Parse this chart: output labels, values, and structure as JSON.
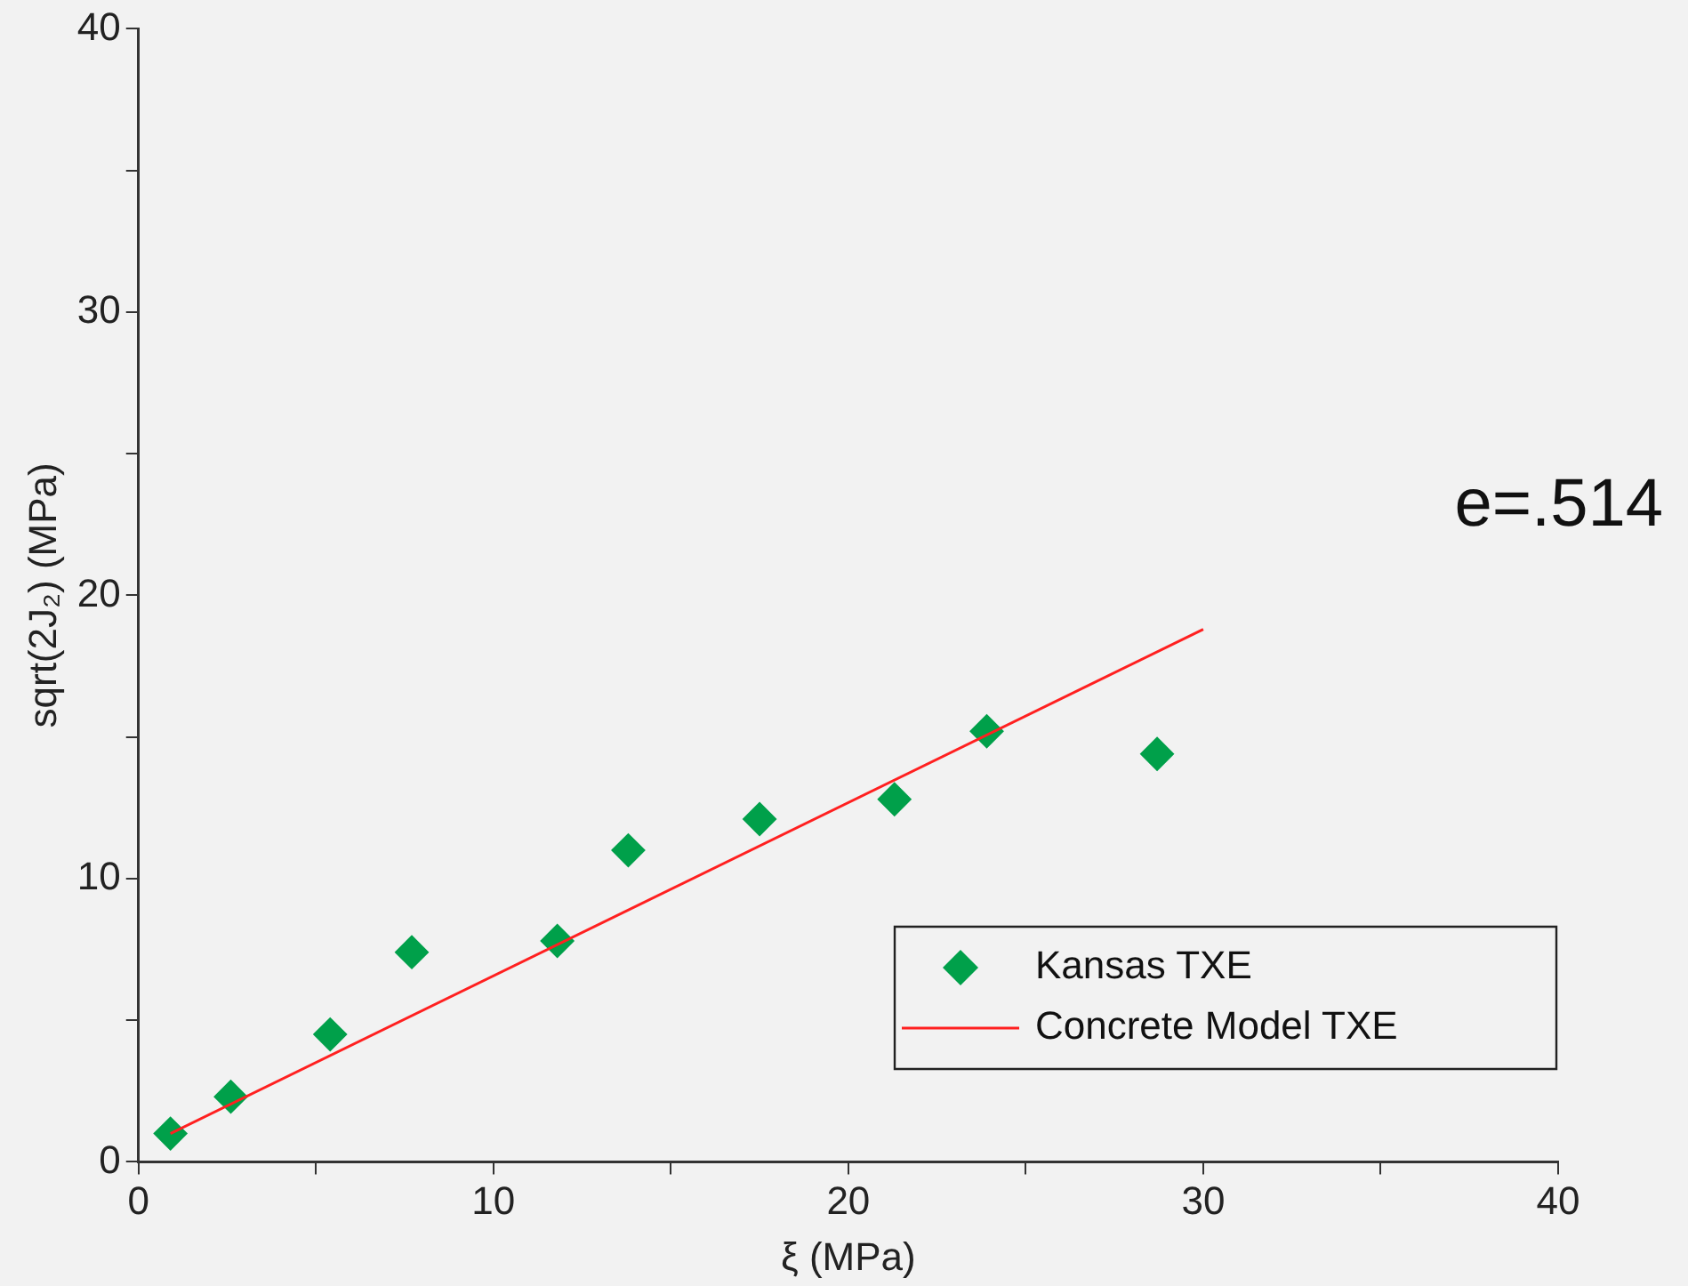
{
  "chart_data": {
    "type": "scatter",
    "xlabel": "ξ (MPa)",
    "ylabel": "sqrt(2J₂) (MPa)",
    "xlim": [
      0,
      40
    ],
    "ylim": [
      0,
      40
    ],
    "xticks": [
      0,
      {
        "value": 5,
        "label": null
      },
      10,
      {
        "value": 15,
        "label": null
      },
      20,
      {
        "value": 25,
        "label": null
      },
      30,
      {
        "value": 35,
        "label": null
      },
      40
    ],
    "yticks": [
      0,
      {
        "value": 5,
        "label": null
      },
      10,
      {
        "value": 15,
        "label": null
      },
      20,
      {
        "value": 25,
        "label": null
      },
      30,
      {
        "value": 35,
        "label": null
      },
      40
    ],
    "grid": false,
    "legend": "bottom right",
    "annotations": [
      "e=.514"
    ],
    "series": [
      {
        "name": "Kansas TXE",
        "marker": "diamond",
        "color": "#00a04a",
        "x": [
          0.9,
          2.6,
          5.4,
          7.7,
          11.8,
          13.8,
          17.5,
          21.3,
          23.9,
          28.7
        ],
        "values": [
          1.0,
          2.3,
          4.5,
          7.4,
          7.8,
          11.0,
          12.1,
          12.8,
          15.2,
          14.4
        ]
      },
      {
        "name": "Concrete Model TXE",
        "type": "line",
        "marker": "none",
        "line_style": "solid",
        "color": "#ff2020",
        "x": [
          0.9,
          30
        ],
        "values": [
          1.0,
          18.8
        ]
      }
    ]
  }
}
